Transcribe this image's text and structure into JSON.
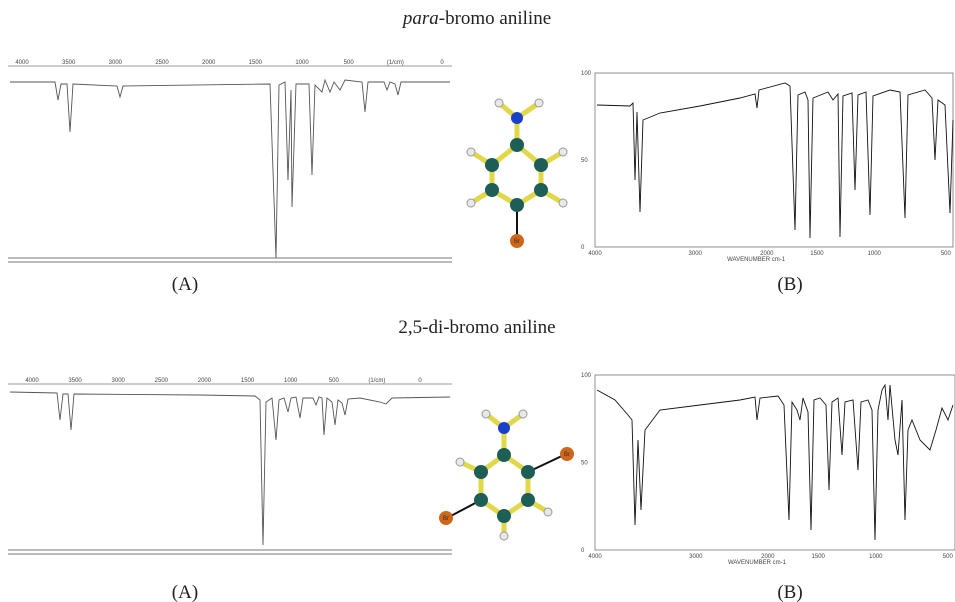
{
  "figures": [
    {
      "title": {
        "italic": "para",
        "rest": "-bromo aniline"
      },
      "spectrum_a": {
        "label": "(A)",
        "xticks": [
          4000,
          3500,
          3000,
          2500,
          2000,
          1500,
          1000,
          500,
          "(1/cm)",
          0
        ]
      },
      "molecule": {
        "labels": [
          "Br"
        ]
      },
      "spectrum_b": {
        "label": "(B)",
        "yticks": [
          100,
          50,
          0
        ],
        "xticks": [
          4000,
          3000,
          2000,
          1500,
          1000,
          500
        ],
        "xlabel": "WAVENUMBER cm-1"
      }
    },
    {
      "title": {
        "text": "2,5-di-bromo aniline"
      },
      "spectrum_a": {
        "label": "(A)",
        "xticks": [
          4000,
          3500,
          3000,
          2500,
          2000,
          1500,
          1000,
          500,
          "(1/cm)",
          0
        ]
      },
      "molecule": {
        "labels": [
          "Br",
          "Br"
        ]
      },
      "spectrum_b": {
        "label": "(B)",
        "yticks": [
          100,
          50,
          0
        ],
        "xticks": [
          4000,
          3000,
          2000,
          1500,
          1000,
          500
        ],
        "xlabel": "WAVENUMBER cm-1"
      }
    }
  ]
}
